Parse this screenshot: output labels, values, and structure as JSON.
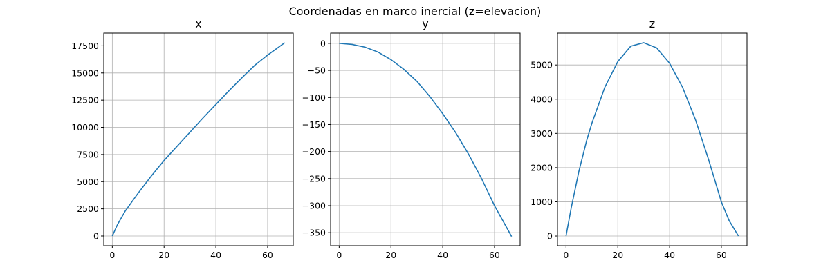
{
  "figure": {
    "suptitle": "Coordenadas en marco inercial (z=elevacion)"
  },
  "chart_data": [
    {
      "type": "line",
      "title": "x",
      "xlabel": "",
      "ylabel": "",
      "grid": true,
      "xlim": [
        -3.3,
        69.9
      ],
      "ylim": [
        -890,
        18670
      ],
      "xticks": [
        0,
        20,
        40,
        60
      ],
      "xtick_labels": [
        "0",
        "20",
        "40",
        "60"
      ],
      "yticks": [
        0,
        2500,
        5000,
        7500,
        10000,
        12500,
        15000,
        17500
      ],
      "ytick_labels": [
        "0",
        "2500",
        "5000",
        "7500",
        "10000",
        "12500",
        "15000",
        "17500"
      ],
      "color": "#1f77b4",
      "series": [
        {
          "x": [
            0,
            2,
            5,
            10,
            15,
            20,
            25,
            30,
            35,
            40,
            45,
            50,
            55,
            60,
            66.6
          ],
          "y": [
            0,
            1050,
            2300,
            3950,
            5500,
            6950,
            8250,
            9550,
            10850,
            12100,
            13350,
            14550,
            15700,
            16650,
            17780
          ]
        }
      ]
    },
    {
      "type": "line",
      "title": "y",
      "xlabel": "",
      "ylabel": "",
      "grid": true,
      "xlim": [
        -3.3,
        69.9
      ],
      "ylim": [
        -374,
        19
      ],
      "xticks": [
        0,
        20,
        40,
        60
      ],
      "xtick_labels": [
        "0",
        "20",
        "40",
        "60"
      ],
      "yticks": [
        0,
        -50,
        -100,
        -150,
        -200,
        -250,
        -300,
        -350
      ],
      "ytick_labels": [
        "0",
        "−50",
        "−100",
        "−150",
        "−200",
        "−250",
        "−300",
        "−350"
      ],
      "color": "#1f77b4",
      "series": [
        {
          "x": [
            0,
            5,
            10,
            15,
            20,
            25,
            30,
            35,
            40,
            45,
            50,
            55,
            60,
            66.6
          ],
          "y": [
            0,
            -2,
            -7,
            -16,
            -30,
            -48,
            -70,
            -98,
            -130,
            -165,
            -205,
            -250,
            -300,
            -357
          ]
        }
      ]
    },
    {
      "type": "line",
      "title": "z",
      "xlabel": "",
      "ylabel": "",
      "grid": true,
      "xlim": [
        -3.3,
        69.9
      ],
      "ylim": [
        -282,
        5932
      ],
      "xticks": [
        0,
        20,
        40,
        60
      ],
      "xtick_labels": [
        "0",
        "20",
        "40",
        "60"
      ],
      "yticks": [
        0,
        1000,
        2000,
        3000,
        4000,
        5000
      ],
      "ytick_labels": [
        "0",
        "1000",
        "2000",
        "3000",
        "4000",
        "5000"
      ],
      "color": "#1f77b4",
      "series": [
        {
          "x": [
            0,
            2,
            5,
            8,
            10,
            15,
            20,
            25,
            30,
            35,
            40,
            45,
            50,
            55,
            60,
            63,
            66.6
          ],
          "y": [
            0,
            820,
            1900,
            2800,
            3300,
            4350,
            5100,
            5550,
            5650,
            5500,
            5050,
            4350,
            3400,
            2250,
            1000,
            450,
            0
          ]
        }
      ]
    }
  ]
}
